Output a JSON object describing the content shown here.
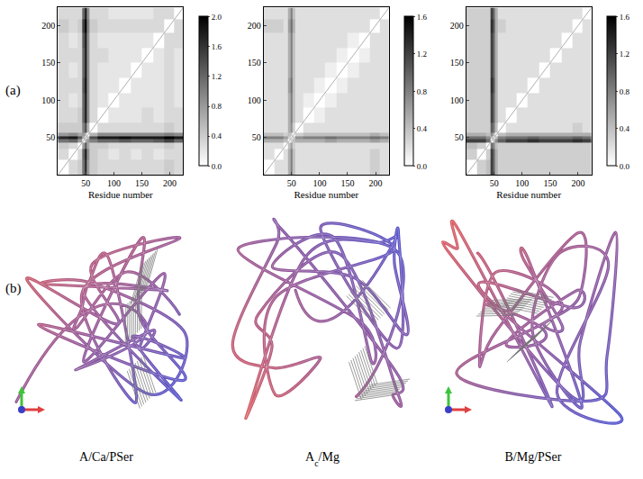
{
  "chart_data": [
    {
      "type": "heatmap",
      "x_label": "Residue number",
      "x": [
        10,
        30,
        40,
        46,
        50,
        54,
        60,
        80,
        100,
        120,
        140,
        160,
        180,
        200,
        216
      ],
      "y": [
        10,
        30,
        40,
        46,
        50,
        54,
        60,
        80,
        100,
        120,
        140,
        160,
        180,
        200,
        216
      ],
      "xlim": [
        0,
        224
      ],
      "ylim": [
        0,
        224
      ],
      "xticks": [
        50,
        100,
        150,
        200
      ],
      "yticks": [
        50,
        100,
        150,
        200
      ],
      "colorbar_range": [
        0,
        2
      ],
      "colorbar_ticks": [
        {
          "value": 0,
          "label": "0.0"
        },
        {
          "value": 0.4,
          "label": "0.4"
        },
        {
          "value": 0.8,
          "label": "0.8"
        },
        {
          "value": 1.2,
          "label": "1.2"
        },
        {
          "value": 1.6,
          "label": "1.6"
        },
        {
          "value": 2,
          "label": "2.0"
        }
      ],
      "cells": [
        [
          0,
          0.3,
          0.4,
          1.1,
          1.7,
          0.8,
          0.4,
          0.3,
          0.3,
          0.3,
          0.3,
          0.3,
          0.3,
          0.4,
          0.3
        ],
        [
          0.3,
          0,
          0.3,
          1.2,
          1.8,
          0.9,
          0.4,
          0.3,
          0.2,
          0.3,
          0.2,
          0.3,
          0.2,
          0.3,
          0.3
        ],
        [
          0.4,
          0.3,
          0,
          0.8,
          1.3,
          0.7,
          0.4,
          0.4,
          0.3,
          0.3,
          0.3,
          0.3,
          0.3,
          0.4,
          0.3
        ],
        [
          1.1,
          1.2,
          0.8,
          0,
          0.6,
          0.8,
          1.0,
          1.2,
          1.2,
          1.3,
          1.2,
          1.2,
          1.3,
          1.5,
          1.2
        ],
        [
          1.7,
          1.8,
          1.3,
          0.6,
          0,
          0.5,
          1.4,
          1.8,
          1.8,
          1.9,
          1.8,
          1.8,
          1.8,
          2.0,
          1.8
        ],
        [
          0.8,
          0.9,
          0.7,
          0.8,
          0.5,
          0,
          0.6,
          0.9,
          0.9,
          0.9,
          0.9,
          0.9,
          0.9,
          1.0,
          0.9
        ],
        [
          0.4,
          0.4,
          0.4,
          1.0,
          1.4,
          0.6,
          0,
          0.3,
          0.3,
          0.3,
          0.3,
          0.3,
          0.3,
          0.4,
          0.3
        ],
        [
          0.3,
          0.3,
          0.4,
          1.2,
          1.8,
          0.9,
          0.3,
          0,
          0.2,
          0.2,
          0.2,
          0.3,
          0.2,
          0.3,
          0.3
        ],
        [
          0.3,
          0.2,
          0.3,
          1.2,
          1.8,
          0.9,
          0.3,
          0.2,
          0,
          0.2,
          0.2,
          0.2,
          0.2,
          0.3,
          0.2
        ],
        [
          0.3,
          0.3,
          0.3,
          1.3,
          1.9,
          0.9,
          0.3,
          0.2,
          0.2,
          0,
          0.2,
          0.2,
          0.2,
          0.3,
          0.2
        ],
        [
          0.3,
          0.2,
          0.3,
          1.2,
          1.8,
          0.9,
          0.3,
          0.2,
          0.2,
          0.2,
          0,
          0.2,
          0.2,
          0.3,
          0.2
        ],
        [
          0.3,
          0.3,
          0.3,
          1.2,
          1.8,
          0.9,
          0.3,
          0.3,
          0.2,
          0.2,
          0.2,
          0,
          0.2,
          0.3,
          0.2
        ],
        [
          0.3,
          0.2,
          0.3,
          1.3,
          1.8,
          0.9,
          0.3,
          0.2,
          0.2,
          0.2,
          0.2,
          0.2,
          0,
          0.3,
          0.3
        ],
        [
          0.4,
          0.3,
          0.4,
          1.5,
          2.0,
          1.0,
          0.4,
          0.3,
          0.3,
          0.3,
          0.3,
          0.3,
          0.3,
          0,
          0.3
        ],
        [
          0.3,
          0.3,
          0.3,
          1.2,
          1.8,
          0.9,
          0.3,
          0.3,
          0.2,
          0.2,
          0.2,
          0.2,
          0.3,
          0.3,
          0
        ]
      ]
    },
    {
      "type": "heatmap",
      "x_label": "Residue number",
      "x": [
        10,
        30,
        40,
        46,
        50,
        54,
        60,
        80,
        100,
        120,
        140,
        160,
        180,
        200,
        216
      ],
      "y": [
        10,
        30,
        40,
        46,
        50,
        54,
        60,
        80,
        100,
        120,
        140,
        160,
        180,
        200,
        216
      ],
      "xlim": [
        0,
        224
      ],
      "ylim": [
        0,
        224
      ],
      "xticks": [
        50,
        100,
        150,
        200
      ],
      "yticks": [
        50,
        100,
        150,
        200
      ],
      "colorbar_range": [
        0,
        1.6
      ],
      "colorbar_ticks": [
        {
          "value": 0,
          "label": "0.0"
        },
        {
          "value": 0.4,
          "label": "0.4"
        },
        {
          "value": 0.8,
          "label": "0.8"
        },
        {
          "value": 1.2,
          "label": "1.2"
        },
        {
          "value": 1.6,
          "label": "1.6"
        }
      ],
      "cells": [
        [
          0,
          0.2,
          0.2,
          0.5,
          0.8,
          0.4,
          0.2,
          0.2,
          0.2,
          0.2,
          0.2,
          0.2,
          0.2,
          0.3,
          0.2
        ],
        [
          0.2,
          0,
          0.2,
          0.5,
          0.8,
          0.4,
          0.2,
          0.2,
          0.2,
          0.2,
          0.2,
          0.2,
          0.2,
          0.3,
          0.2
        ],
        [
          0.2,
          0.2,
          0,
          0.4,
          0.6,
          0.3,
          0.2,
          0.2,
          0.2,
          0.2,
          0.2,
          0.2,
          0.2,
          0.2,
          0.2
        ],
        [
          0.5,
          0.5,
          0.4,
          0,
          0.3,
          0.4,
          0.5,
          0.5,
          0.5,
          0.6,
          0.5,
          0.5,
          0.5,
          0.6,
          0.5
        ],
        [
          0.8,
          0.8,
          0.6,
          0.3,
          0,
          0.3,
          0.7,
          0.8,
          0.8,
          0.9,
          0.8,
          0.8,
          0.8,
          0.9,
          0.8
        ],
        [
          0.4,
          0.4,
          0.3,
          0.4,
          0.3,
          0,
          0.3,
          0.4,
          0.4,
          0.4,
          0.4,
          0.4,
          0.4,
          0.5,
          0.4
        ],
        [
          0.2,
          0.2,
          0.2,
          0.5,
          0.7,
          0.3,
          0,
          0.2,
          0.2,
          0.2,
          0.2,
          0.2,
          0.2,
          0.2,
          0.2
        ],
        [
          0.2,
          0.2,
          0.2,
          0.5,
          0.8,
          0.4,
          0.2,
          0,
          0.1,
          0.2,
          0.2,
          0.2,
          0.2,
          0.2,
          0.2
        ],
        [
          0.2,
          0.2,
          0.2,
          0.5,
          0.8,
          0.4,
          0.2,
          0.1,
          0,
          0.1,
          0.2,
          0.2,
          0.2,
          0.2,
          0.2
        ],
        [
          0.2,
          0.2,
          0.2,
          0.6,
          0.9,
          0.4,
          0.2,
          0.2,
          0.1,
          0,
          0.1,
          0.2,
          0.2,
          0.2,
          0.2
        ],
        [
          0.2,
          0.2,
          0.2,
          0.5,
          0.8,
          0.4,
          0.2,
          0.2,
          0.2,
          0.1,
          0,
          0.1,
          0.2,
          0.2,
          0.2
        ],
        [
          0.2,
          0.2,
          0.2,
          0.5,
          0.8,
          0.4,
          0.2,
          0.2,
          0.2,
          0.2,
          0.1,
          0,
          0.1,
          0.2,
          0.2
        ],
        [
          0.2,
          0.2,
          0.2,
          0.5,
          0.8,
          0.4,
          0.2,
          0.2,
          0.2,
          0.2,
          0.2,
          0.1,
          0,
          0.2,
          0.2
        ],
        [
          0.3,
          0.3,
          0.2,
          0.6,
          0.9,
          0.5,
          0.2,
          0.2,
          0.2,
          0.2,
          0.2,
          0.2,
          0.2,
          0,
          0.2
        ],
        [
          0.2,
          0.2,
          0.2,
          0.5,
          0.8,
          0.4,
          0.2,
          0.2,
          0.2,
          0.2,
          0.2,
          0.2,
          0.2,
          0.2,
          0
        ]
      ]
    },
    {
      "type": "heatmap",
      "x_label": "Residue number",
      "x": [
        10,
        30,
        40,
        46,
        50,
        54,
        60,
        80,
        100,
        120,
        140,
        160,
        180,
        200,
        216
      ],
      "y": [
        10,
        30,
        40,
        46,
        50,
        54,
        60,
        80,
        100,
        120,
        140,
        160,
        180,
        200,
        216
      ],
      "xlim": [
        0,
        224
      ],
      "ylim": [
        0,
        224
      ],
      "xticks": [
        50,
        100,
        150,
        200
      ],
      "yticks": [
        50,
        100,
        150,
        200
      ],
      "colorbar_range": [
        0,
        1.6
      ],
      "colorbar_ticks": [
        {
          "value": 0,
          "label": "0.0"
        },
        {
          "value": 0.4,
          "label": "0.4"
        },
        {
          "value": 0.8,
          "label": "0.8"
        },
        {
          "value": 1.2,
          "label": "1.2"
        },
        {
          "value": 1.6,
          "label": "1.6"
        }
      ],
      "cells": [
        [
          0,
          0.3,
          0.4,
          1.2,
          0.9,
          0.5,
          0.3,
          0.3,
          0.3,
          0.3,
          0.3,
          0.3,
          0.3,
          0.3,
          0.3
        ],
        [
          0.3,
          0,
          0.3,
          1.2,
          0.9,
          0.5,
          0.3,
          0.3,
          0.3,
          0.3,
          0.3,
          0.3,
          0.3,
          0.3,
          0.3
        ],
        [
          0.4,
          0.3,
          0,
          0.9,
          0.7,
          0.4,
          0.3,
          0.3,
          0.3,
          0.3,
          0.3,
          0.3,
          0.3,
          0.3,
          0.3
        ],
        [
          1.2,
          1.2,
          0.9,
          0,
          0.4,
          0.7,
          1.0,
          1.2,
          1.2,
          1.3,
          1.2,
          1.2,
          1.2,
          1.3,
          1.2
        ],
        [
          0.9,
          0.9,
          0.7,
          0.4,
          0,
          0.4,
          0.8,
          0.9,
          0.9,
          1.0,
          0.9,
          0.9,
          0.9,
          1.0,
          0.9
        ],
        [
          0.5,
          0.5,
          0.4,
          0.7,
          0.4,
          0,
          0.4,
          0.5,
          0.5,
          0.5,
          0.5,
          0.5,
          0.5,
          0.5,
          0.5
        ],
        [
          0.3,
          0.3,
          0.3,
          1.0,
          0.8,
          0.4,
          0,
          0.2,
          0.2,
          0.2,
          0.2,
          0.2,
          0.2,
          0.3,
          0.2
        ],
        [
          0.3,
          0.3,
          0.3,
          1.2,
          0.9,
          0.5,
          0.2,
          0,
          0.2,
          0.2,
          0.2,
          0.2,
          0.2,
          0.2,
          0.2
        ],
        [
          0.3,
          0.3,
          0.3,
          1.2,
          0.9,
          0.5,
          0.2,
          0.2,
          0,
          0.2,
          0.2,
          0.2,
          0.2,
          0.2,
          0.2
        ],
        [
          0.3,
          0.3,
          0.3,
          1.3,
          1.0,
          0.5,
          0.2,
          0.2,
          0.2,
          0,
          0.2,
          0.2,
          0.2,
          0.2,
          0.2
        ],
        [
          0.3,
          0.3,
          0.3,
          1.2,
          0.9,
          0.5,
          0.2,
          0.2,
          0.2,
          0.2,
          0,
          0.2,
          0.2,
          0.2,
          0.2
        ],
        [
          0.3,
          0.3,
          0.3,
          1.2,
          0.9,
          0.5,
          0.2,
          0.2,
          0.2,
          0.2,
          0.2,
          0,
          0.2,
          0.2,
          0.2
        ],
        [
          0.3,
          0.3,
          0.3,
          1.2,
          0.9,
          0.5,
          0.2,
          0.2,
          0.2,
          0.2,
          0.2,
          0.2,
          0,
          0.2,
          0.2
        ],
        [
          0.3,
          0.3,
          0.3,
          1.3,
          1.0,
          0.5,
          0.3,
          0.2,
          0.2,
          0.2,
          0.2,
          0.2,
          0.2,
          0,
          0.2
        ],
        [
          0.3,
          0.3,
          0.3,
          1.2,
          0.9,
          0.5,
          0.2,
          0.2,
          0.2,
          0.2,
          0.2,
          0.2,
          0.2,
          0.2,
          0
        ]
      ]
    }
  ],
  "panel_labels": [
    "(a)",
    "(b)"
  ],
  "structures": [
    {
      "label_parts": [
        {
          "text": "A/Ca/PSer"
        }
      ]
    },
    {
      "label_parts": [
        {
          "text": "A"
        },
        {
          "text": "c",
          "sub": true
        },
        {
          "text": "/Mg"
        }
      ]
    },
    {
      "label_parts": [
        {
          "text": "B/Mg/PSer"
        }
      ]
    }
  ]
}
